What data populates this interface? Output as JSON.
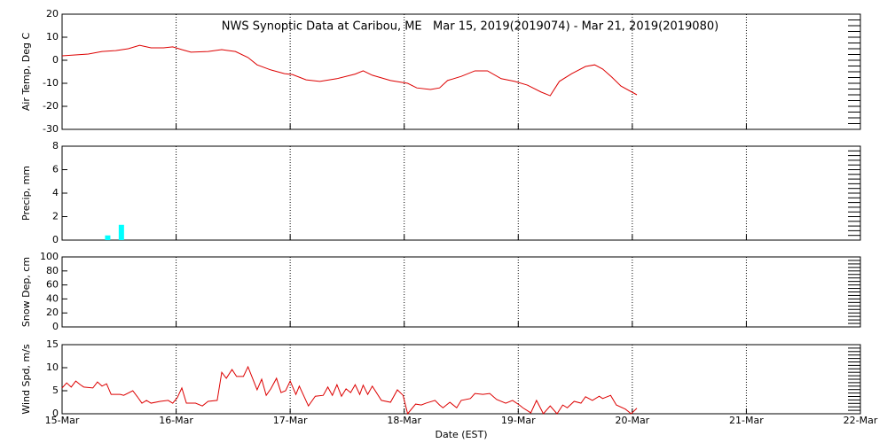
{
  "chart_data": [
    {
      "type": "line",
      "title": "NWS Synoptic Data at Caribou, ME   Mar 15, 2019(2019074) - Mar 21, 2019(2019080)",
      "ylabel": "Air Temp, Deg C",
      "color": "#dd0000",
      "grid": true,
      "xlim": [
        0,
        7
      ],
      "xticks": [
        0,
        1,
        2,
        3,
        4,
        5,
        6,
        7
      ],
      "ylim": [
        -30,
        20
      ],
      "yticks": [
        -30,
        -20,
        -10,
        0,
        10,
        20
      ],
      "x": [
        0,
        0.23,
        0.35,
        0.47,
        0.58,
        0.68,
        0.78,
        0.89,
        0.97,
        1.05,
        1.13,
        1.28,
        1.4,
        1.52,
        1.63,
        1.71,
        1.83,
        1.95,
        2.02,
        2.14,
        2.26,
        2.41,
        2.57,
        2.64,
        2.72,
        2.88,
        3.03,
        3.11,
        3.23,
        3.31,
        3.38,
        3.5,
        3.62,
        3.73,
        3.85,
        3.97,
        4.08,
        4.2,
        4.28,
        4.36,
        4.47,
        4.59,
        4.67,
        4.74,
        4.82,
        4.9,
        5.04
      ],
      "values": [
        1.9,
        2.7,
        3.8,
        4.2,
        5,
        6.5,
        5.4,
        5.4,
        5.8,
        4.6,
        3.5,
        3.8,
        4.6,
        3.8,
        1.2,
        -2,
        -4.2,
        -5.8,
        -6.2,
        -8.5,
        -9.2,
        -8,
        -6,
        -4.6,
        -6.5,
        -8.8,
        -10,
        -12,
        -12.7,
        -12,
        -8.8,
        -7,
        -4.6,
        -4.6,
        -8,
        -9.2,
        -10.8,
        -13.8,
        -15.4,
        -9.2,
        -5.8,
        -2.7,
        -2,
        -3.8,
        -7.3,
        -11.2,
        -15
      ]
    },
    {
      "type": "bar",
      "ylabel": "Precip, mm",
      "color": "#00ffff",
      "grid": true,
      "xlim": [
        0,
        7
      ],
      "xticks": [
        0,
        1,
        2,
        3,
        4,
        5,
        6,
        7
      ],
      "ylim": [
        0,
        8
      ],
      "yticks": [
        0,
        2,
        4,
        6,
        8
      ],
      "x": [
        0.4,
        0.52
      ],
      "values": [
        0.4,
        1.3
      ]
    },
    {
      "type": "line",
      "ylabel": "Snow Dep, cm",
      "color": "#dd0000",
      "grid": true,
      "xlim": [
        0,
        7
      ],
      "xticks": [
        0,
        1,
        2,
        3,
        4,
        5,
        6,
        7
      ],
      "ylim": [
        0,
        100
      ],
      "yticks": [
        0,
        20,
        40,
        60,
        80,
        100
      ],
      "x": [],
      "values": []
    },
    {
      "type": "line",
      "ylabel": "Wind Spd, m/s",
      "xlabel": "Date (EST)",
      "color": "#dd0000",
      "grid": true,
      "xlim": [
        0,
        7
      ],
      "ylim": [
        0,
        15
      ],
      "yticks": [
        0,
        5,
        10,
        15
      ],
      "xticks": [
        {
          "value": 0,
          "label": "15-Mar"
        },
        {
          "value": 1,
          "label": "16-Mar"
        },
        {
          "value": 2,
          "label": "17-Mar"
        },
        {
          "value": 3,
          "label": "18-Mar"
        },
        {
          "value": 4,
          "label": "19-Mar"
        },
        {
          "value": 5,
          "label": "20-Mar"
        },
        {
          "value": 6,
          "label": "21-Mar"
        },
        {
          "value": 7,
          "label": "22-Mar"
        }
      ],
      "x": [
        0,
        0.04,
        0.08,
        0.12,
        0.16,
        0.19,
        0.27,
        0.31,
        0.35,
        0.39,
        0.43,
        0.51,
        0.54,
        0.62,
        0.66,
        0.7,
        0.74,
        0.78,
        0.86,
        0.93,
        0.97,
        1.01,
        1.05,
        1.09,
        1.17,
        1.23,
        1.28,
        1.36,
        1.4,
        1.44,
        1.49,
        1.53,
        1.59,
        1.63,
        1.67,
        1.71,
        1.75,
        1.79,
        1.83,
        1.88,
        1.92,
        1.96,
        2,
        2.05,
        2.08,
        2.16,
        2.22,
        2.29,
        2.33,
        2.37,
        2.41,
        2.45,
        2.49,
        2.53,
        2.57,
        2.61,
        2.64,
        2.68,
        2.72,
        2.8,
        2.88,
        2.94,
        2.99,
        3.03,
        3.1,
        3.15,
        3.19,
        3.27,
        3.31,
        3.34,
        3.4,
        3.46,
        3.5,
        3.58,
        3.62,
        3.69,
        3.75,
        3.81,
        3.89,
        3.95,
        4.01,
        4.04,
        4.11,
        4.16,
        4.22,
        4.28,
        4.34,
        4.39,
        4.43,
        4.49,
        4.55,
        4.59,
        4.65,
        4.71,
        4.74,
        4.81,
        4.86,
        4.94,
        4.99,
        5.04
      ],
      "values": [
        5.6,
        6.7,
        5.8,
        7.1,
        6.3,
        5.8,
        5.6,
        6.9,
        6,
        6.5,
        4.2,
        4.2,
        4,
        5,
        3.7,
        2.3,
        2.9,
        2.3,
        2.7,
        2.9,
        2.3,
        3.5,
        5.6,
        2.3,
        2.3,
        1.7,
        2.7,
        2.9,
        9,
        7.7,
        9.6,
        8.1,
        8.1,
        10.2,
        7.7,
        5.2,
        7.5,
        4,
        5.4,
        7.7,
        4.6,
        5,
        7.1,
        4.2,
        6,
        1.7,
        3.8,
        4,
        5.8,
        4,
        6.3,
        3.8,
        5.4,
        4.6,
        6.3,
        4.2,
        6.2,
        4.2,
        6,
        2.9,
        2.5,
        5.2,
        4,
        0,
        2.1,
        1.9,
        2.3,
        2.9,
        1.9,
        1.3,
        2.5,
        1.3,
        2.9,
        3.3,
        4.4,
        4.2,
        4.4,
        3.1,
        2.3,
        2.9,
        1.9,
        1.3,
        0.2,
        2.9,
        0,
        1.7,
        0,
        1.9,
        1.3,
        2.7,
        2.3,
        3.7,
        2.9,
        3.8,
        3.3,
        4,
        1.9,
        1,
        0,
        1.2
      ]
    }
  ]
}
